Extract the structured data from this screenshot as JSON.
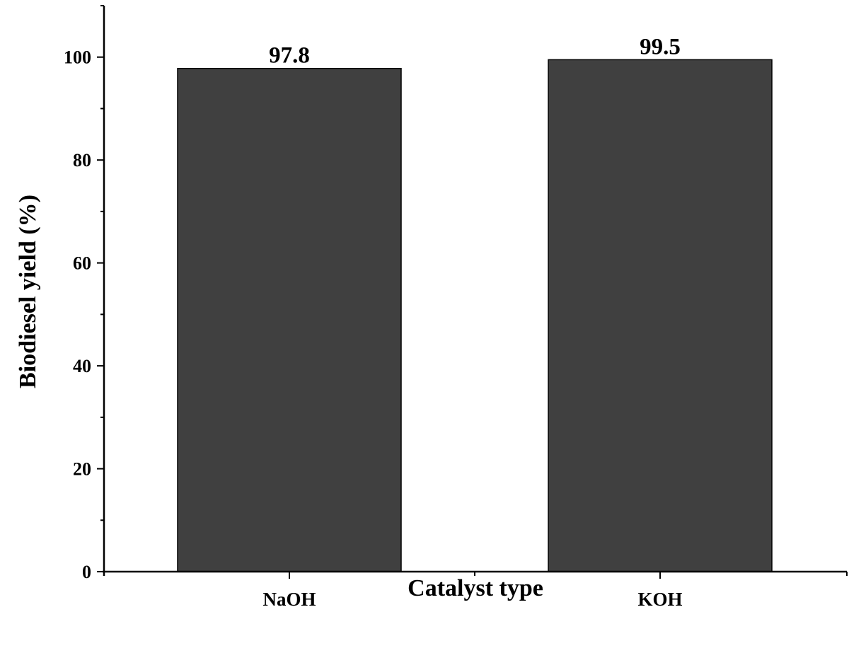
{
  "chart_data": {
    "type": "bar",
    "categories": [
      "NaOH",
      "KOH"
    ],
    "values": [
      97.8,
      99.5
    ],
    "data_labels": [
      "97.8",
      "99.5"
    ],
    "xlabel": "Catalyst type",
    "ylabel": "Biodiesel yield (%)",
    "ylim": [
      0,
      110
    ],
    "yticks": [
      "0",
      "20",
      "40",
      "60",
      "80",
      "100"
    ],
    "bar_color": "#404040",
    "grid": false,
    "legend": "none"
  }
}
